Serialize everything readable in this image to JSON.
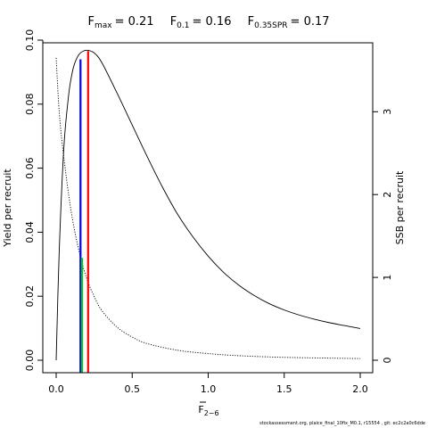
{
  "header": {
    "fmax_label": "F",
    "fmax_sub": "max",
    "fmax_value": "= 0.21",
    "f01_label": "F",
    "f01_sub": "0.1",
    "f01_value": "= 0.16",
    "f035_label": "F",
    "f035_sub": "0.35SPR",
    "f035_value": "= 0.17"
  },
  "footer": "stockassessment.org, plaice_final_10fix_M0.1, r15554 , git: ec2c2a0c6dde",
  "chart_data": {
    "type": "line",
    "xlabel_main": "F",
    "xlabel_sub": "2−6",
    "ylabel_left": "Yield per recruit",
    "ylabel_right": "SSB per recruit",
    "xlim": [
      0,
      2
    ],
    "ylim_left": [
      0,
      0.1
    ],
    "ylim_right": [
      0,
      3.81
    ],
    "xticks": [
      0,
      0.5,
      1,
      1.5,
      2
    ],
    "xtick_labels": [
      "0.0",
      "0.5",
      "1.0",
      "1.5",
      "2.0"
    ],
    "yticks_left": [
      0,
      0.02,
      0.04,
      0.06,
      0.08,
      0.1
    ],
    "ytick_labels_left": [
      "0.00",
      "0.02",
      "0.04",
      "0.06",
      "0.08",
      "0.10"
    ],
    "yticks_right": [
      0,
      1,
      2,
      3
    ],
    "ytick_labels_right": [
      "0",
      "1",
      "2",
      "3"
    ],
    "grid": false,
    "series": [
      {
        "style": "solid",
        "axis": "left",
        "x": [
          0,
          0.02,
          0.05,
          0.08,
          0.1,
          0.12,
          0.15,
          0.18,
          0.21,
          0.25,
          0.3,
          0.4,
          0.5,
          0.6,
          0.7,
          0.8,
          0.9,
          1.0,
          1.1,
          1.2,
          1.3,
          1.4,
          1.5,
          1.6,
          1.7,
          1.8,
          1.9,
          2.0
        ],
        "y": [
          0,
          0.034,
          0.066,
          0.082,
          0.0885,
          0.0925,
          0.0955,
          0.0966,
          0.0968,
          0.096,
          0.093,
          0.0835,
          0.0735,
          0.0635,
          0.054,
          0.0455,
          0.0385,
          0.0325,
          0.0275,
          0.0235,
          0.0203,
          0.0177,
          0.0157,
          0.0141,
          0.0128,
          0.0117,
          0.0108,
          0.0099
        ]
      },
      {
        "style": "dotted",
        "axis": "right",
        "x": [
          0,
          0.02,
          0.05,
          0.1,
          0.15,
          0.2,
          0.25,
          0.3,
          0.4,
          0.5,
          0.6,
          0.8,
          1.0,
          1.2,
          1.5,
          2.0
        ],
        "y": [
          3.65,
          3.0,
          2.45,
          1.78,
          1.32,
          0.99,
          0.77,
          0.6,
          0.4,
          0.28,
          0.2,
          0.12,
          0.08,
          0.055,
          0.035,
          0.02
        ]
      }
    ],
    "reference_lines": [
      {
        "name": "F0.1",
        "color": "#0000ff",
        "x": 0.16,
        "y_from": 0,
        "y_to": 0.094
      },
      {
        "name": "F0.35SPR",
        "color": "#00cd00",
        "x": 0.17,
        "y_from": 0,
        "y_to": 0.032
      },
      {
        "name": "Fmax",
        "color": "#ff0000",
        "x": 0.21,
        "y_from": 0,
        "y_to": 0.0966
      }
    ]
  }
}
